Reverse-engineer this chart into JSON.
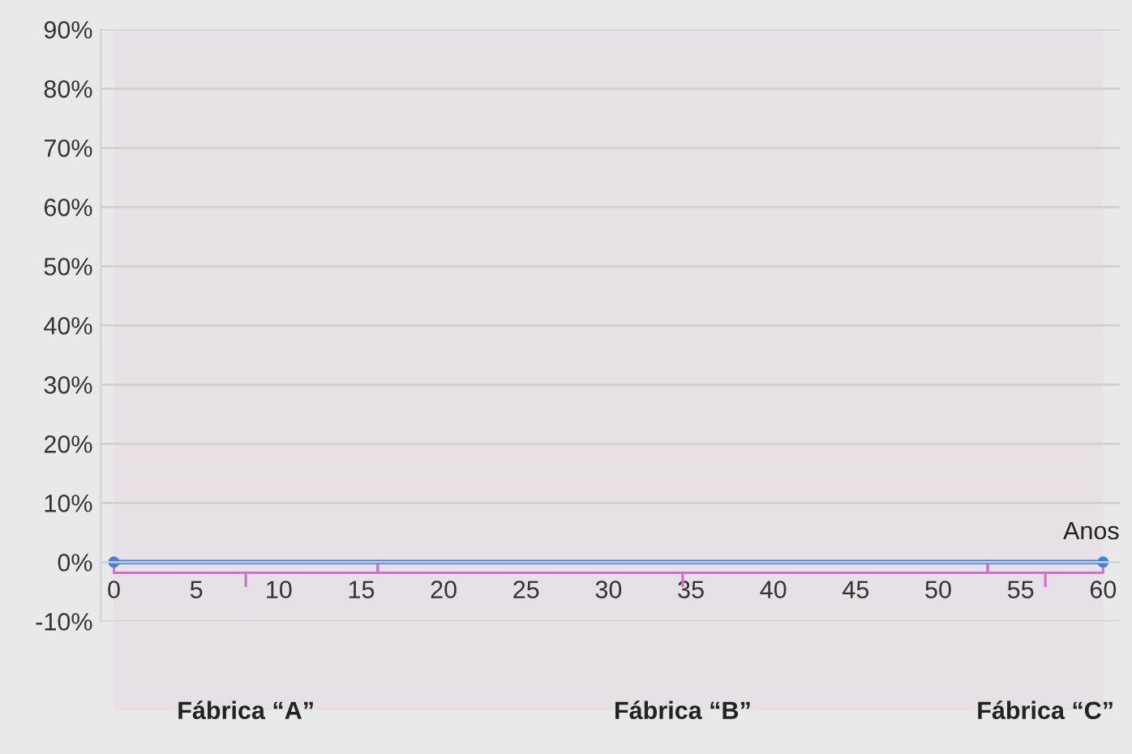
{
  "chart_data": {
    "type": "line",
    "xlabel": "Anos",
    "x": [
      0,
      60
    ],
    "series": [
      {
        "color": "#4a7fd0",
        "values": [
          0,
          0
        ]
      }
    ],
    "marker": "circle",
    "xlim": [
      -0.8,
      61
    ],
    "xticks": [
      0,
      5,
      10,
      15,
      20,
      25,
      30,
      35,
      40,
      45,
      50,
      55,
      60
    ],
    "ylim": [
      -10,
      90
    ],
    "yticks": [
      {
        "value": -10,
        "label": "-10%"
      },
      {
        "value": 0,
        "label": "0%"
      },
      {
        "value": 10,
        "label": "10%"
      },
      {
        "value": 20,
        "label": "20%"
      },
      {
        "value": 30,
        "label": "30%"
      },
      {
        "value": 40,
        "label": "40%"
      },
      {
        "value": 50,
        "label": "50%"
      },
      {
        "value": 60,
        "label": "60%"
      },
      {
        "value": 70,
        "label": "70%"
      },
      {
        "value": 80,
        "label": "80%"
      },
      {
        "value": 90,
        "label": "90%"
      }
    ],
    "grid": "y",
    "bands": [
      {
        "axis": "x",
        "from": 0,
        "to": 16,
        "label": "Fábrica “A”",
        "color": "#d070c8"
      },
      {
        "axis": "x",
        "from": 16,
        "to": 53,
        "label": "Fábrica “B”",
        "color": "#d070c8"
      },
      {
        "axis": "x",
        "from": 53,
        "to": 60,
        "label": "Fábrica “C”",
        "color": "#d070c8"
      }
    ]
  }
}
